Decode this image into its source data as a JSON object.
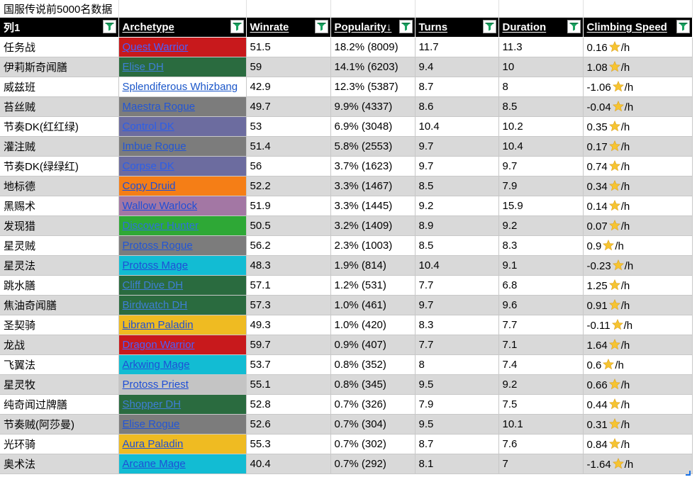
{
  "sheet_title": "国服传说前5000名数据",
  "headers": [
    "列1",
    "Archetype",
    "Winrate",
    "Popularity↓",
    "Turns",
    "Duration",
    "Climbing Speed"
  ],
  "speed_unit": "/h",
  "icons": {
    "filter": "filter-icon",
    "star": "star-icon"
  },
  "rows": [
    {
      "cls": "任务战",
      "arch": "Quest Warrior",
      "bg": "#c8191c",
      "fg": "#4a5fff",
      "wr": "51.5",
      "pop": "18.2% (8009)",
      "turns": "11.7",
      "dur": "11.3",
      "speed": "0.16"
    },
    {
      "cls": "伊莉斯奇闻膳",
      "arch": "Elise DH",
      "bg": "#2a6b3f",
      "fg": "#3e7fd6",
      "wr": "59",
      "pop": "14.1% (6203)",
      "turns": "9.4",
      "dur": "10",
      "speed": "1.08"
    },
    {
      "cls": "威兹班",
      "arch": "Splendiferous Whizbang",
      "bg": "#ffffff",
      "fg": "#1a56c9",
      "wr": "42.9",
      "pop": "12.3% (5387)",
      "turns": "8.7",
      "dur": "8",
      "speed": "-1.06"
    },
    {
      "cls": "苔丝贼",
      "arch": "Maestra Rogue",
      "bg": "#7c7c7c",
      "fg": "#2255d6",
      "wr": "49.7",
      "pop": "9.9% (4337)",
      "turns": "8.6",
      "dur": "8.5",
      "speed": "-0.04"
    },
    {
      "cls": "节奏DK(红红绿)",
      "arch": "Control DK",
      "bg": "#6c6c9f",
      "fg": "#2c5ee8",
      "wr": "53",
      "pop": "6.9% (3048)",
      "turns": "10.4",
      "dur": "10.2",
      "speed": "0.35"
    },
    {
      "cls": "灌注贼",
      "arch": "Imbue Rogue",
      "bg": "#7c7c7c",
      "fg": "#2255d6",
      "wr": "51.4",
      "pop": "5.8% (2553)",
      "turns": "9.7",
      "dur": "10.4",
      "speed": "0.17"
    },
    {
      "cls": "节奏DK(绿绿红)",
      "arch": "Corpse DK",
      "bg": "#6c6c9f",
      "fg": "#2c5ee8",
      "wr": "56",
      "pop": "3.7% (1623)",
      "turns": "9.7",
      "dur": "9.7",
      "speed": "0.74"
    },
    {
      "cls": "地标德",
      "arch": "Copy Druid",
      "bg": "#f57e16",
      "fg": "#1f4fd6",
      "wr": "52.2",
      "pop": "3.3% (1467)",
      "turns": "8.5",
      "dur": "7.9",
      "speed": "0.34"
    },
    {
      "cls": "黑赐术",
      "arch": "Wallow Warlock",
      "bg": "#a377a4",
      "fg": "#1f4fd6",
      "wr": "51.9",
      "pop": "3.3% (1445)",
      "turns": "9.2",
      "dur": "15.9",
      "speed": "0.14"
    },
    {
      "cls": "发现猎",
      "arch": "Discover Hunter",
      "bg": "#2ea836",
      "fg": "#2d6fde",
      "wr": "50.5",
      "pop": "3.2% (1409)",
      "turns": "8.9",
      "dur": "9.2",
      "speed": "0.07"
    },
    {
      "cls": "星灵贼",
      "arch": "Protoss Rogue",
      "bg": "#7c7c7c",
      "fg": "#2255d6",
      "wr": "56.2",
      "pop": "2.3% (1003)",
      "turns": "8.5",
      "dur": "8.3",
      "speed": "0.9"
    },
    {
      "cls": "星灵法",
      "arch": "Protoss Mage",
      "bg": "#12bcd3",
      "fg": "#1f4fd6",
      "wr": "48.3",
      "pop": "1.9% (814)",
      "turns": "10.4",
      "dur": "9.1",
      "speed": "-0.23"
    },
    {
      "cls": "跳水膳",
      "arch": "Cliff Dive DH",
      "bg": "#2a6b3f",
      "fg": "#3e7fd6",
      "wr": "57.1",
      "pop": "1.2% (531)",
      "turns": "7.7",
      "dur": "6.8",
      "speed": "1.25"
    },
    {
      "cls": "焦油奇闻膳",
      "arch": "Birdwatch DH",
      "bg": "#2a6b3f",
      "fg": "#3e7fd6",
      "wr": "57.3",
      "pop": "1.0% (461)",
      "turns": "9.7",
      "dur": "9.6",
      "speed": "0.91"
    },
    {
      "cls": "圣契骑",
      "arch": "Libram Paladin",
      "bg": "#efbb22",
      "fg": "#1f4fd6",
      "wr": "49.3",
      "pop": "1.0% (420)",
      "turns": "8.3",
      "dur": "7.7",
      "speed": "-0.11"
    },
    {
      "cls": "龙战",
      "arch": "Dragon Warrior",
      "bg": "#c8191c",
      "fg": "#4a5fff",
      "wr": "59.7",
      "pop": "0.9% (407)",
      "turns": "7.7",
      "dur": "7.1",
      "speed": "1.64"
    },
    {
      "cls": "飞翼法",
      "arch": "Arkwing Mage",
      "bg": "#12bcd3",
      "fg": "#1f4fd6",
      "wr": "53.7",
      "pop": "0.8% (352)",
      "turns": "8",
      "dur": "7.4",
      "speed": "0.6"
    },
    {
      "cls": "星灵牧",
      "arch": "Protoss Priest",
      "bg": "#c4c4c4",
      "fg": "#1f4fd6",
      "wr": "55.1",
      "pop": "0.8% (345)",
      "turns": "9.5",
      "dur": "9.2",
      "speed": "0.66"
    },
    {
      "cls": "纯奇闻过牌膳",
      "arch": "Shopper DH",
      "bg": "#2a6b3f",
      "fg": "#3e7fd6",
      "wr": "52.8",
      "pop": "0.7% (326)",
      "turns": "7.9",
      "dur": "7.5",
      "speed": "0.44"
    },
    {
      "cls": "节奏贼(阿莎曼)",
      "arch": "Elise Rogue",
      "bg": "#7c7c7c",
      "fg": "#2255d6",
      "wr": "52.6",
      "pop": "0.7% (304)",
      "turns": "9.5",
      "dur": "10.1",
      "speed": "0.31"
    },
    {
      "cls": "光环骑",
      "arch": "Aura Paladin",
      "bg": "#efbb22",
      "fg": "#1f4fd6",
      "wr": "55.3",
      "pop": "0.7% (302)",
      "turns": "8.7",
      "dur": "7.6",
      "speed": "0.84"
    },
    {
      "cls": "奥术法",
      "arch": "Arcane Mage",
      "bg": "#12bcd3",
      "fg": "#1f4fd6",
      "wr": "40.4",
      "pop": "0.7% (292)",
      "turns": "8.1",
      "dur": "7",
      "speed": "-1.64"
    }
  ]
}
